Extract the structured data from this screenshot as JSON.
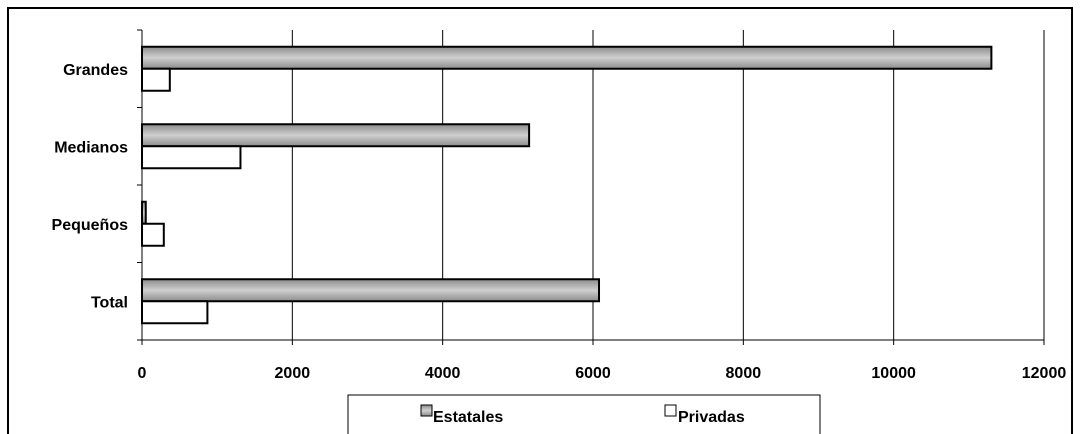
{
  "chart_data": {
    "type": "bar",
    "orientation": "horizontal",
    "categories": [
      "Grandes",
      "Medianos",
      "Pequeños",
      "Total"
    ],
    "series": [
      {
        "name": "Estatales",
        "values": [
          11300,
          5150,
          50,
          6080
        ],
        "color": "#a6a6a6"
      },
      {
        "name": "Privadas",
        "values": [
          370,
          1310,
          290,
          870
        ],
        "color": "#ffffff"
      }
    ],
    "xlim": [
      0,
      12000
    ],
    "xticks": [
      0,
      2000,
      4000,
      6000,
      8000,
      10000,
      12000
    ],
    "tick_labels": [
      "0",
      "2000",
      "4000",
      "6000",
      "8000",
      "10000",
      "12000"
    ],
    "grid": "vertical",
    "legend": "bottom",
    "title": "",
    "xlabel": "",
    "ylabel": ""
  }
}
